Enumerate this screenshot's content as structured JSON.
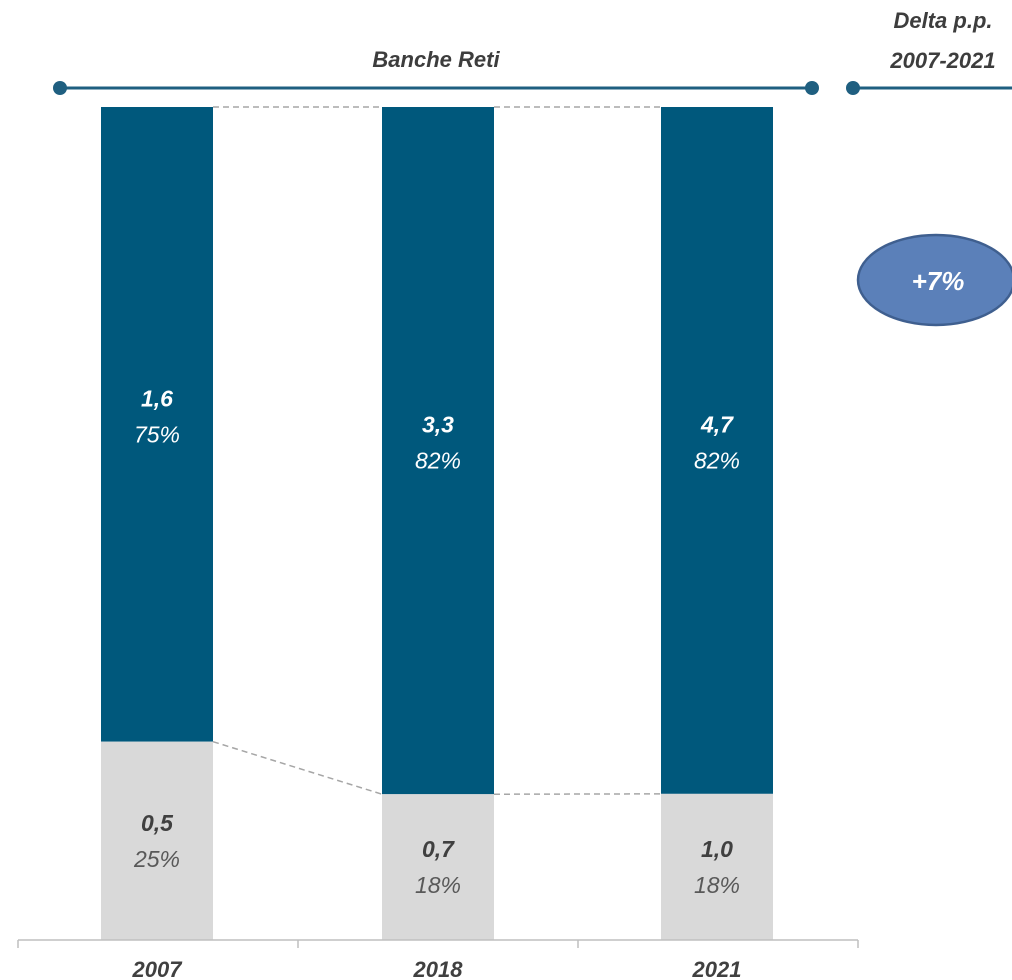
{
  "chart_data": {
    "type": "bar",
    "stacked": true,
    "normalized": true,
    "categories": [
      "2007",
      "2018",
      "2021"
    ],
    "series": [
      {
        "values": [
          0.5,
          0.7,
          1.0
        ],
        "value_labels": [
          "0,5",
          "0,7",
          "1,0"
        ],
        "percent_labels": [
          "25%",
          "18%",
          "18%"
        ],
        "share": [
          0.25,
          0.18,
          0.18
        ],
        "color": "#d9d9d9"
      },
      {
        "values": [
          1.6,
          3.3,
          4.7
        ],
        "value_labels": [
          "1,6",
          "3,3",
          "4,7"
        ],
        "percent_labels": [
          "75%",
          "82%",
          "82%"
        ],
        "share": [
          0.75,
          0.82,
          0.82
        ],
        "color": "#00587c"
      }
    ],
    "group_header": "Banche Reti",
    "delta_header": [
      "Delta p.p.",
      "2007-2021"
    ],
    "delta_badge": "+7%",
    "colors": {
      "bar_top": "#00587c",
      "bar_bottom": "#d9d9d9",
      "header_line": "#1f5f80",
      "badge_fill": "#5b80b9",
      "badge_stroke": "#3f5f8f"
    }
  }
}
